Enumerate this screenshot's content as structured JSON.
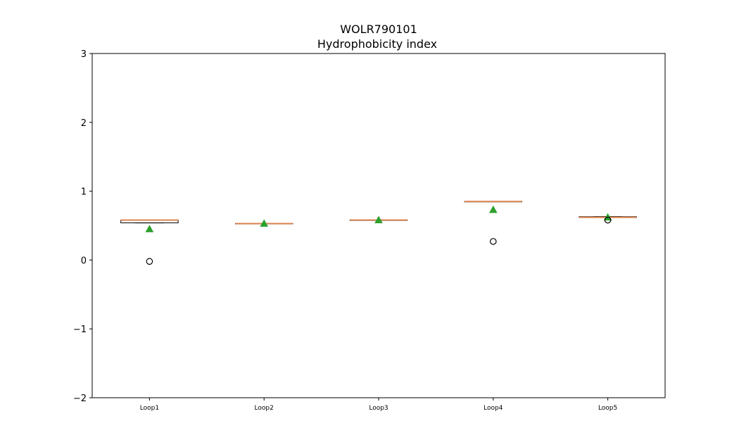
{
  "chart_data": {
    "type": "box",
    "title": "WOLR790101",
    "subtitle": "Hydrophobicity index",
    "xlabel": "",
    "ylabel": "",
    "ylim": [
      -2,
      3
    ],
    "yticks": [
      {
        "value": 3,
        "label": "3"
      },
      {
        "value": 2,
        "label": "2"
      },
      {
        "value": 1,
        "label": "1"
      },
      {
        "value": 0,
        "label": "0"
      },
      {
        "value": -1,
        "label": "−1"
      },
      {
        "value": -2,
        "label": "−2"
      }
    ],
    "grid": false,
    "categories": [
      "Loop1",
      "Loop2",
      "Loop3",
      "Loop4",
      "Loop5"
    ],
    "boxes": [
      {
        "q1": 0.54,
        "median": 0.58,
        "q3": 0.58,
        "whisker_low": 0.54,
        "whisker_high": 0.58,
        "mean": 0.45,
        "outliers": [
          -0.02
        ]
      },
      {
        "q1": 0.53,
        "median": 0.53,
        "q3": 0.53,
        "whisker_low": 0.53,
        "whisker_high": 0.53,
        "mean": 0.53,
        "outliers": []
      },
      {
        "q1": 0.58,
        "median": 0.58,
        "q3": 0.58,
        "whisker_low": 0.58,
        "whisker_high": 0.58,
        "mean": 0.58,
        "outliers": []
      },
      {
        "q1": 0.85,
        "median": 0.85,
        "q3": 0.85,
        "whisker_low": 0.85,
        "whisker_high": 0.85,
        "mean": 0.73,
        "outliers": [
          0.27
        ]
      },
      {
        "q1": 0.62,
        "median": 0.62,
        "q3": 0.63,
        "whisker_low": 0.62,
        "whisker_high": 0.63,
        "mean": 0.62,
        "outliers": [
          0.58
        ]
      }
    ],
    "colors": {
      "box": "#000000",
      "median": "#dd8452",
      "mean": "#2ca02c",
      "outlier_edge": "#000000"
    }
  }
}
